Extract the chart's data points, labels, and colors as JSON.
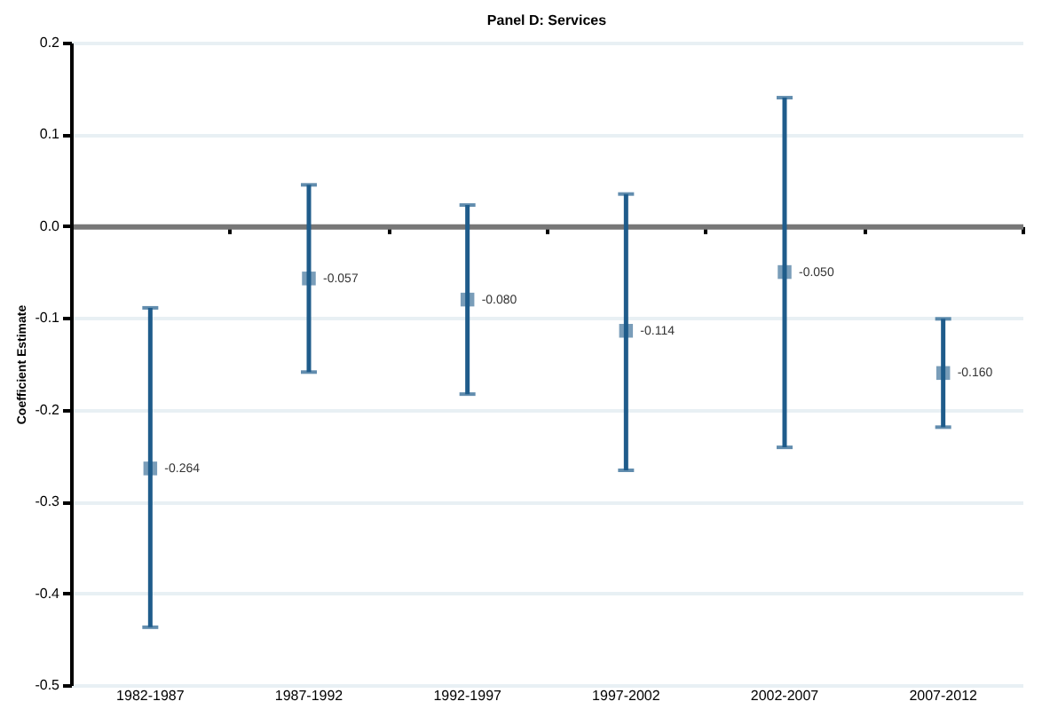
{
  "chart_data": {
    "type": "scatter",
    "title": "Panel D: Services",
    "ylabel": "Coefficient Estimate",
    "categories": [
      "1982-1987",
      "1987-1992",
      "1992-1997",
      "1997-2002",
      "2002-2007",
      "2007-2012"
    ],
    "series": [
      {
        "color": "#1f5c8b",
        "values": [
          -0.264,
          -0.057,
          -0.08,
          -0.114,
          -0.05,
          -0.16
        ],
        "errors": [
          [
            -0.437,
            -0.089
          ],
          [
            -0.159,
            0.045
          ],
          [
            -0.183,
            0.023
          ],
          [
            -0.266,
            0.035
          ],
          [
            -0.241,
            0.14
          ],
          [
            -0.219,
            -0.101
          ]
        ],
        "value_labels": [
          "-0.264",
          "-0.057",
          "-0.080",
          "-0.114",
          "-0.050",
          "-0.160"
        ]
      }
    ],
    "ylim": [
      -0.5,
      0.2
    ],
    "yticks": [
      {
        "value": -0.5,
        "label": "-0.5"
      },
      {
        "value": -0.4,
        "label": "-0.4"
      },
      {
        "value": -0.3,
        "label": "-0.3"
      },
      {
        "value": -0.2,
        "label": "-0.2"
      },
      {
        "value": -0.1,
        "label": "-0.1"
      },
      {
        "value": 0,
        "label": "0.0"
      },
      {
        "value": 0.1,
        "label": "0.1"
      },
      {
        "value": 0.2,
        "label": "0.2"
      }
    ],
    "grid": "y",
    "marker": "square"
  }
}
